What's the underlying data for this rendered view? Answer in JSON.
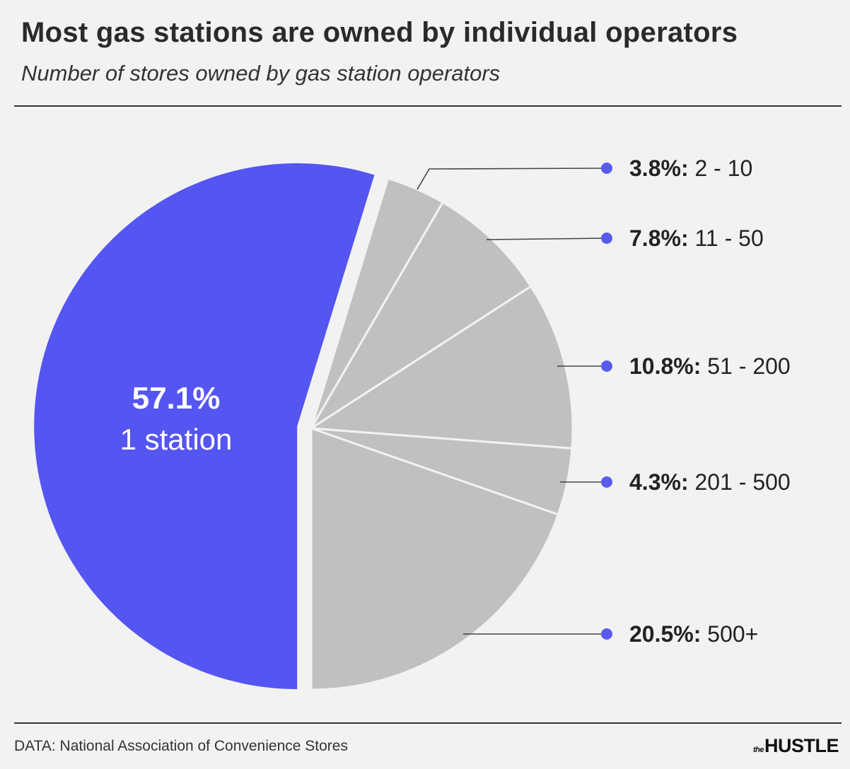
{
  "title": "Most gas stations are owned by individual operators",
  "subtitle": "Number of stores owned by gas station operators",
  "source": "DATA: National Association of Convenience Stores",
  "logo": "the HUSTLE",
  "colors": {
    "highlight": "#5555f2",
    "other": "#c0c0c0",
    "background": "#f2f2f2",
    "dot": "#5a5af0"
  },
  "chart_data": {
    "type": "pie",
    "title": "Most gas stations are owned by individual operators",
    "subtitle": "Number of stores owned by gas station operators",
    "unit": "%",
    "slices": [
      {
        "pct": "57.1%",
        "label": "1 station",
        "value": 57.1,
        "highlight": true
      },
      {
        "pct": "3.8%:",
        "label": "2 - 10",
        "value": 3.8
      },
      {
        "pct": "7.8%:",
        "label": "11 - 50",
        "value": 7.8
      },
      {
        "pct": "10.8%:",
        "label": "51 - 200",
        "value": 10.8
      },
      {
        "pct": "4.3%:",
        "label": "201 - 500",
        "value": 4.3
      },
      {
        "pct": "20.5%:",
        "label": "500+",
        "value": 20.5
      }
    ]
  }
}
